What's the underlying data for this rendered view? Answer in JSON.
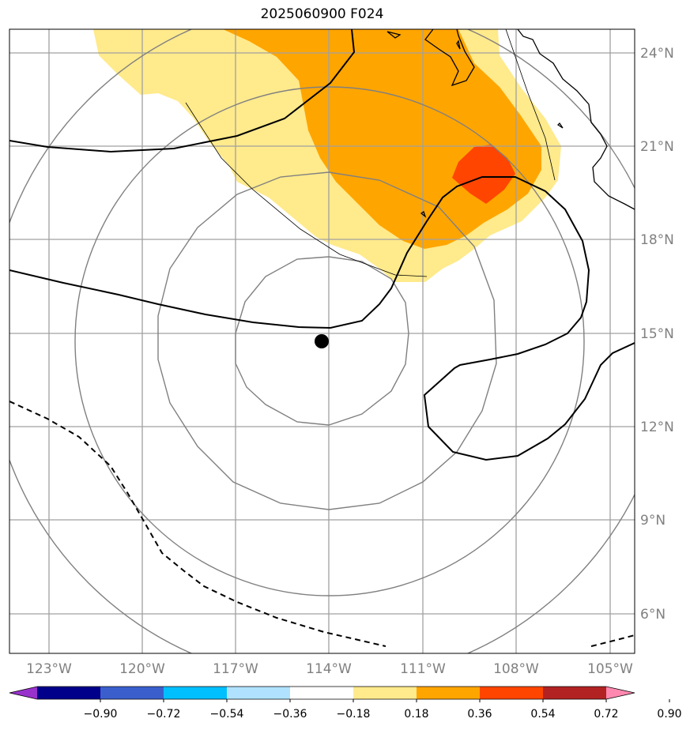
{
  "title": "2025060900 F024",
  "map": {
    "lon_labels": [
      "123°W",
      "120°W",
      "117°W",
      "114°W",
      "111°W",
      "108°W",
      "105°W"
    ],
    "lat_labels": [
      "24°N",
      "21°N",
      "18°N",
      "15°N",
      "12°N",
      "9°N",
      "6°N"
    ],
    "center_marker": {
      "lon": -114.2,
      "lat": 14.7
    }
  },
  "colorbar": {
    "colors": [
      "#9932cc",
      "#00008b",
      "#3a5fcd",
      "#00bfff",
      "#b0e2ff",
      "#ffffff",
      "#ffea8c",
      "#ffa500",
      "#ff4500",
      "#b22222",
      "#ff88b0"
    ],
    "ticks": [
      "−0.90",
      "−0.72",
      "−0.54",
      "−0.36",
      "−0.18",
      "0.18",
      "0.36",
      "0.54",
      "0.72",
      "0.90"
    ]
  },
  "colors": {
    "gridline": "#a0a0a0",
    "label": "#808080",
    "contour_gray": "#808080",
    "contour_black": "#000000"
  }
}
